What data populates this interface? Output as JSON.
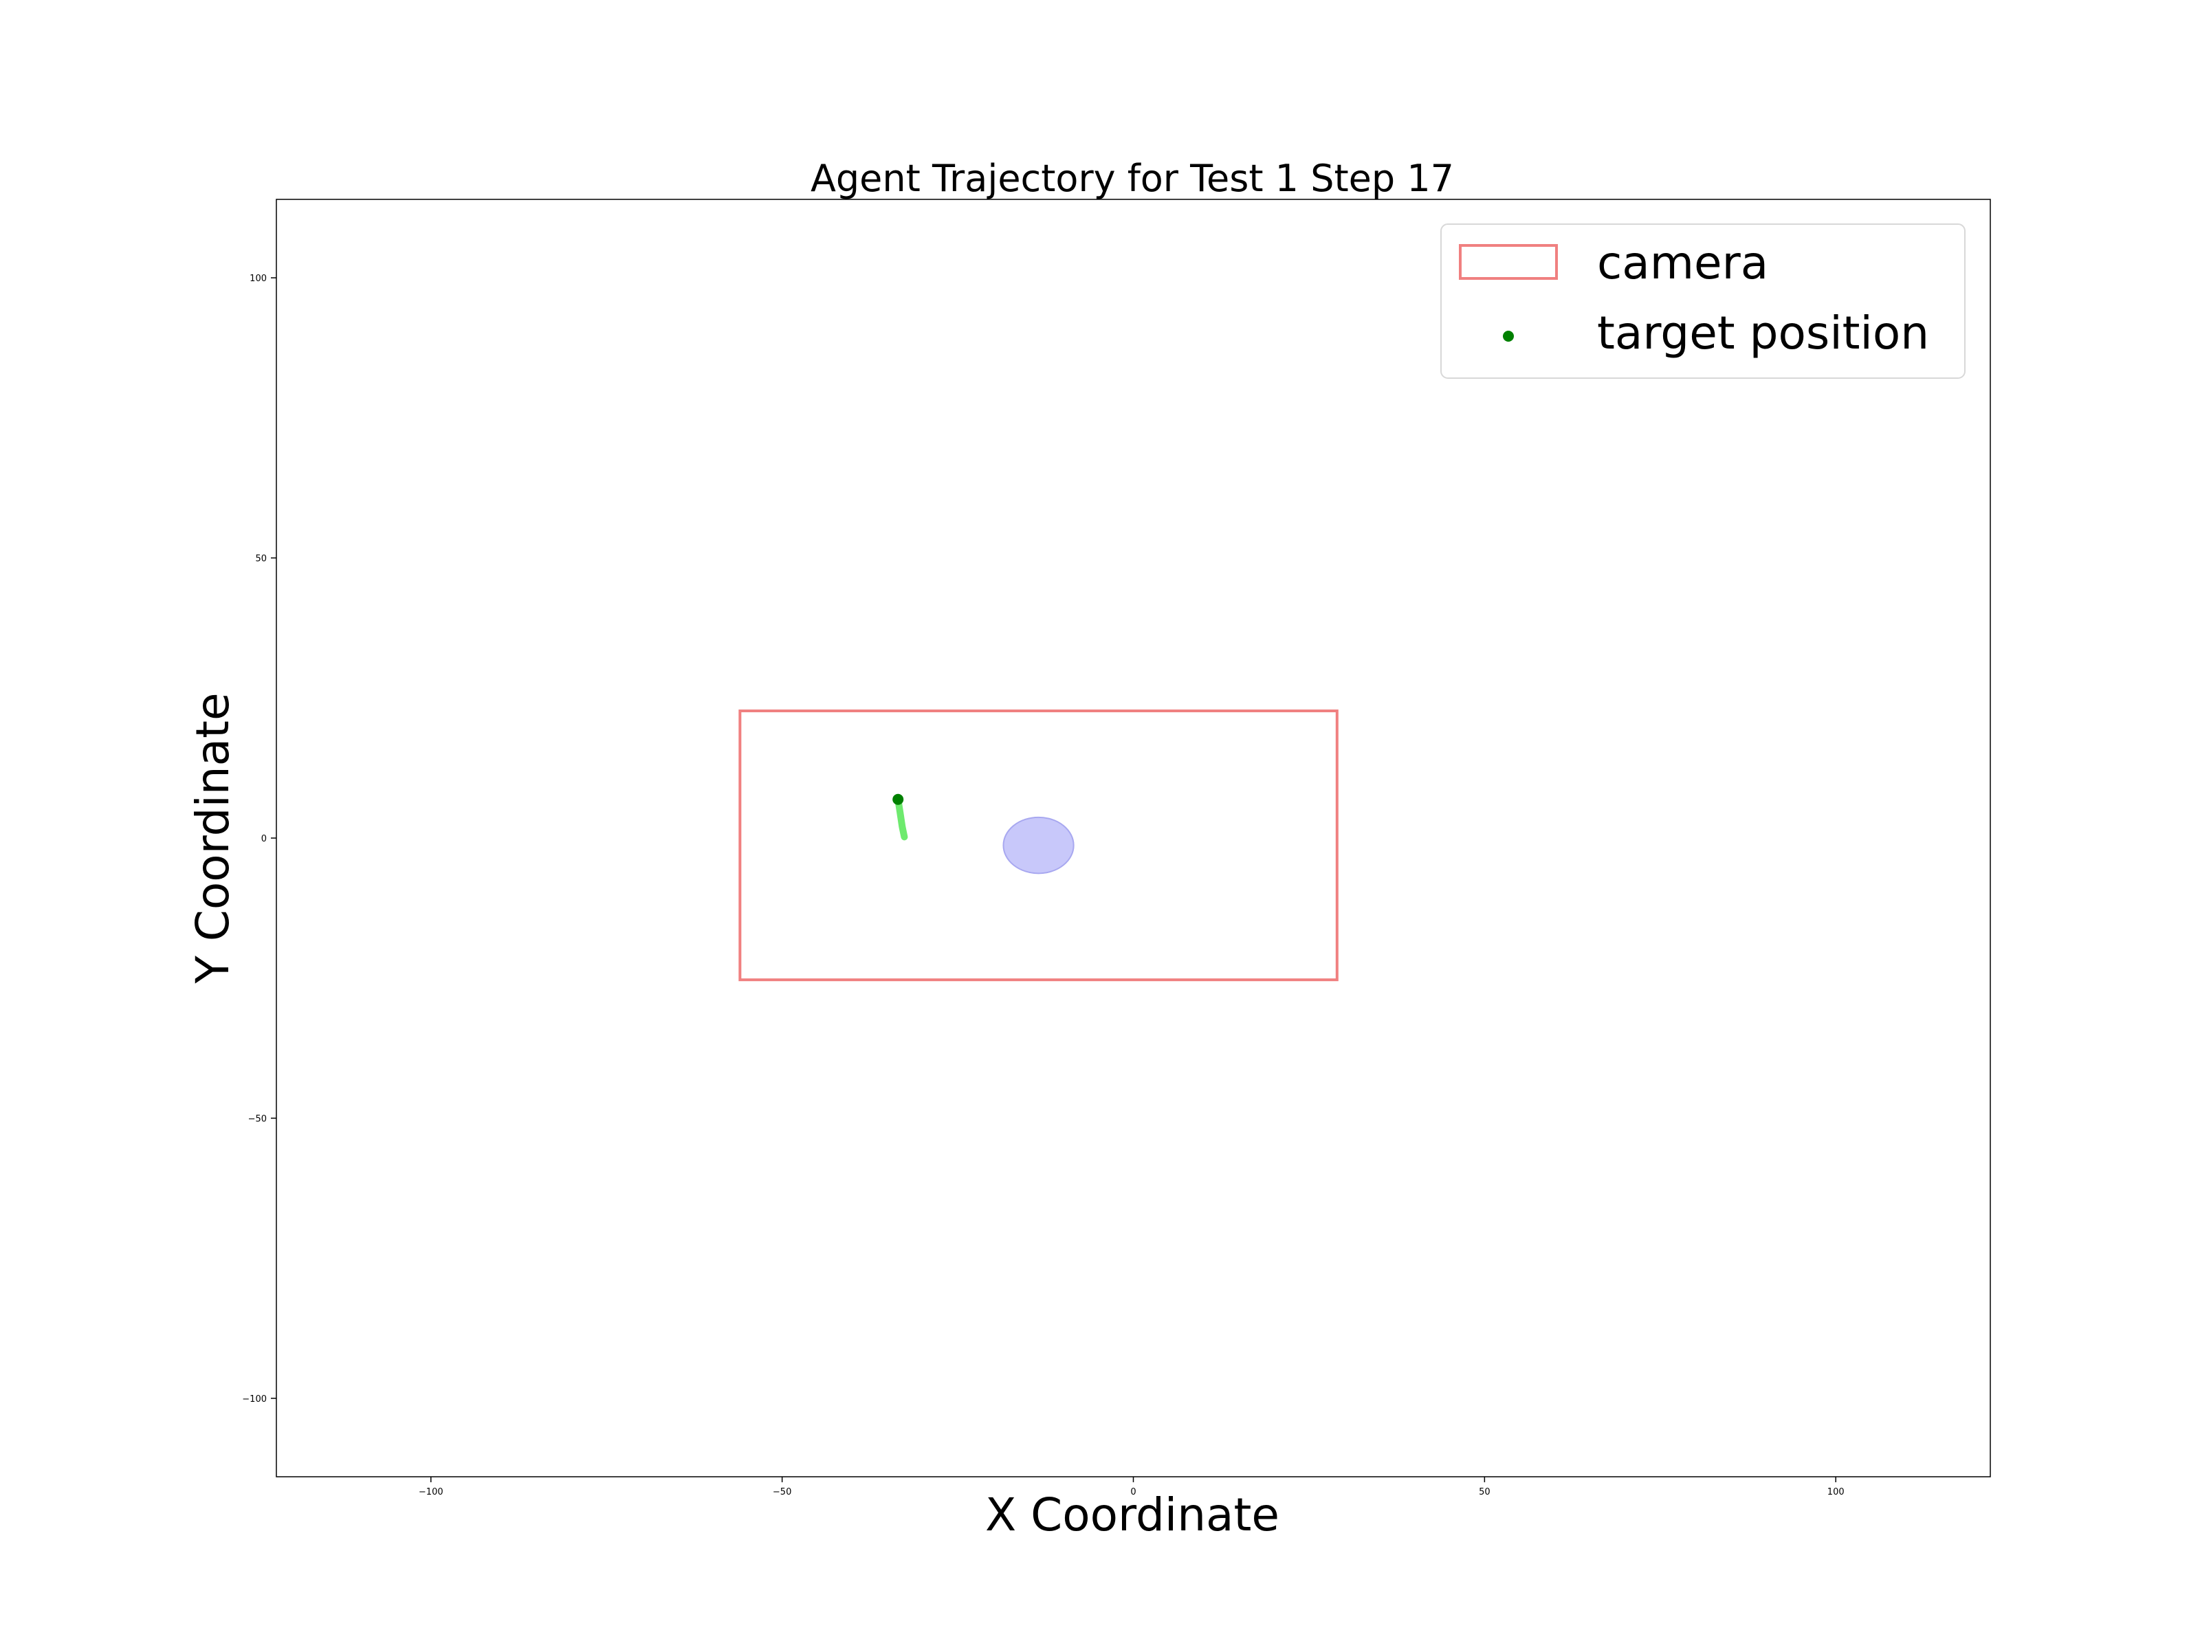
{
  "chart_data": {
    "type": "scatter",
    "title": "Agent Trajectory for Test 1 Step 17",
    "xlabel": "X Coordinate",
    "ylabel": "Y Coordinate",
    "xlim": [
      -122,
      122
    ],
    "ylim": [
      -114,
      114
    ],
    "x_ticks": [
      -100,
      -50,
      0,
      50,
      100
    ],
    "y_ticks": [
      100,
      50,
      0,
      -50,
      -100
    ],
    "x_tick_labels": [
      "−100",
      "−50",
      "0",
      "50",
      "100"
    ],
    "y_tick_labels": [
      "100",
      "50",
      "0",
      "−50",
      "−100"
    ],
    "grid": false,
    "legend_position": "top-right",
    "legend": [
      {
        "label": "camera",
        "marker": "rectangle-outline",
        "color": "#f08080"
      },
      {
        "label": "target position",
        "marker": "dot",
        "color": "#008000"
      }
    ],
    "camera": {
      "x_min": -56,
      "x_max": 29,
      "y_min": -25.3,
      "y_max": 22.7,
      "color": "#f08080"
    },
    "target_position": {
      "x": -33.5,
      "y": 6.9,
      "color": "#008000"
    },
    "trajectory": {
      "x": [
        -33.5,
        -33.2,
        -32.9,
        -32.6
      ],
      "y": [
        6.9,
        4.5,
        2.0,
        0.2
      ],
      "color": "#5ee85e"
    },
    "agent_region": {
      "cx": -13.5,
      "cy": -1.3,
      "rx": 5.0,
      "ry": 5.0,
      "fill": "#c8c8fa",
      "stroke": "#a8a8f0"
    }
  }
}
